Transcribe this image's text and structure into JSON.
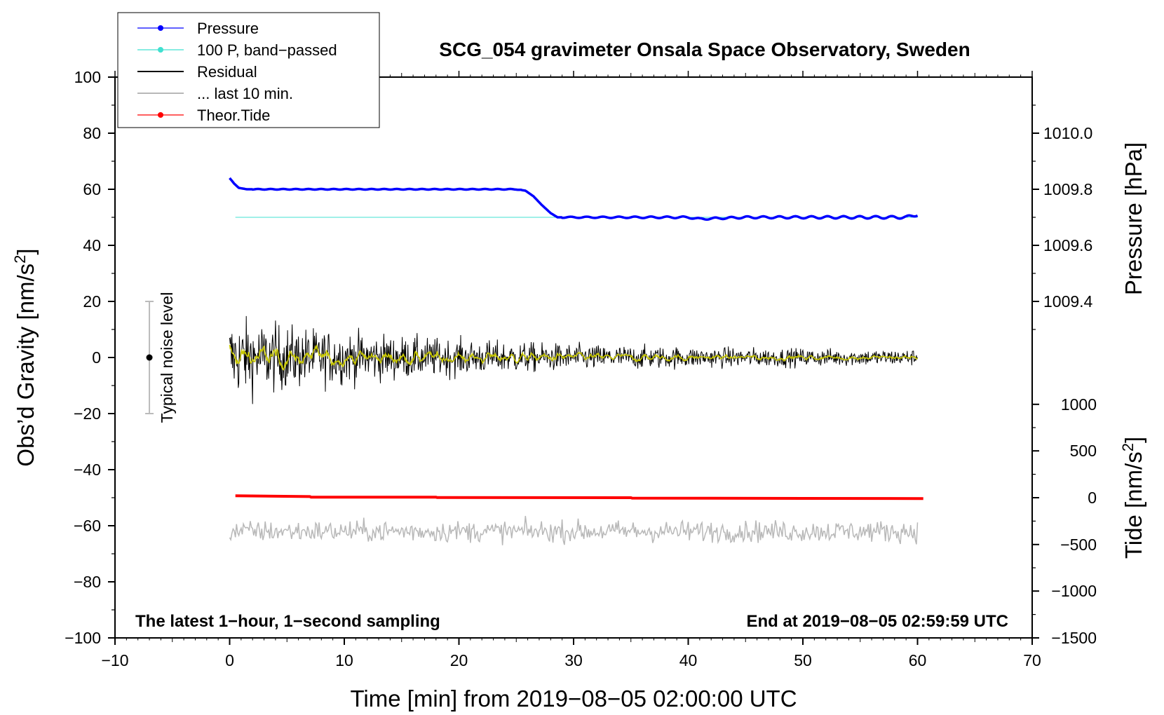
{
  "chart_data": {
    "type": "line",
    "title": "SCG_054 gravimeter Onsala Space Observatory, Sweden",
    "xlabel": "Time [min] from 2019−08−05 02:00:00 UTC",
    "ylabel_left": "Obs’d Gravity [nm/s²]",
    "ylabel_right_top": "Pressure [hPa]",
    "ylabel_right_bottom": "Tide [nm/s²]",
    "xlim": [
      -10,
      70
    ],
    "ylim_left": [
      -100,
      100
    ],
    "xticks": [
      "−10",
      "0",
      "10",
      "20",
      "30",
      "40",
      "50",
      "60",
      "70"
    ],
    "xtick_values": [
      -10,
      0,
      10,
      20,
      30,
      40,
      50,
      60,
      70
    ],
    "yticks_left": [
      "100",
      "80",
      "60",
      "40",
      "20",
      "0",
      "−20",
      "−40",
      "−60",
      "−80",
      "−100"
    ],
    "ytick_values_left": [
      100,
      80,
      60,
      40,
      20,
      0,
      -20,
      -40,
      -60,
      -80,
      -100
    ],
    "pressure_axis": {
      "ticks": [
        "1010.0",
        "1009.8",
        "1009.6",
        "1009.4"
      ],
      "values": [
        1010.0,
        1009.8,
        1009.6,
        1009.4
      ],
      "left_equivalent": [
        80,
        60,
        40,
        20
      ]
    },
    "tide_axis": {
      "ticks": [
        "1000",
        "500",
        "0",
        "−500",
        "−1000",
        "−1500"
      ],
      "values": [
        1000,
        500,
        0,
        -500,
        -1000,
        -1500
      ],
      "left_equivalent": [
        -16.7,
        -33.3,
        -50,
        -66.7,
        -83.3,
        -100
      ]
    },
    "legend": [
      {
        "label": "Pressure",
        "color": "#0000ff",
        "marker": true
      },
      {
        "label": "100 P, band−passed",
        "color": "#40e0d0",
        "marker": true
      },
      {
        "label": "Residual",
        "color": "#000000",
        "marker": false
      },
      {
        "label": "... last 10 min.",
        "color": "#b8b8b8",
        "marker": false
      },
      {
        "label": "Theor.Tide",
        "color": "#ff0000",
        "marker": true
      }
    ],
    "series": [
      {
        "name": "Pressure",
        "color": "#0000ff",
        "description": "starts ~64 at t=0, settles ~60 until t~25.5, drops to ~50 by t~28.5, then ~50 with small oscillations to t=60, ends ~51",
        "x": [
          0,
          0.4,
          0.8,
          1.5,
          5,
          10,
          15,
          20,
          25,
          25.8,
          26.5,
          27.2,
          28,
          28.6,
          30,
          35,
          40,
          41,
          45,
          50,
          55,
          58,
          59,
          59.5,
          60
        ],
        "values": [
          64,
          62,
          60.5,
          60,
          60,
          60,
          60,
          60,
          60,
          59.5,
          57.5,
          54.5,
          51.5,
          50,
          50,
          50,
          50,
          49.4,
          50,
          50,
          50,
          50,
          50,
          50.5,
          51
        ]
      },
      {
        "name": "100 P, band-passed",
        "color": "#40e0d0",
        "x": [
          0.5,
          60
        ],
        "values": [
          50,
          50
        ]
      },
      {
        "name": "Residual",
        "color": "#000000",
        "description": "1-second residual noise centred on 0; amplitude ~±15 for t<10, decreasing to ~±3 by t=60",
        "x_range": [
          0,
          60
        ],
        "center": 0,
        "amplitude_start": 15,
        "amplitude_end": 3
      },
      {
        "name": "Residual (smoothed)",
        "color": "#c8c800",
        "description": "smoothed residual, amplitude ~±4",
        "x_range": [
          0,
          60
        ],
        "center": 0
      },
      {
        "name": "... last 10 min.",
        "color": "#b8b8b8",
        "description": "copy of last 10 min residual offset to −62",
        "x_range": [
          0,
          60
        ],
        "center": -62,
        "amplitude": 6
      },
      {
        "name": "Theor.Tide",
        "color": "#ff0000",
        "x": [
          0.5,
          7,
          7.1,
          18,
          18.1,
          35,
          35.1,
          60.5
        ],
        "values": [
          -49.3,
          -49.6,
          -49.8,
          -49.8,
          -49.95,
          -50.0,
          -50.15,
          -50.3
        ]
      }
    ],
    "noise_bar": {
      "x": -7,
      "center": 0,
      "low": -20,
      "high": 20,
      "label": "Typical noise level"
    },
    "annotation_left": "The latest 1−hour, 1−second sampling",
    "annotation_right": "End at 2019−08−05 02:59:59 UTC"
  }
}
